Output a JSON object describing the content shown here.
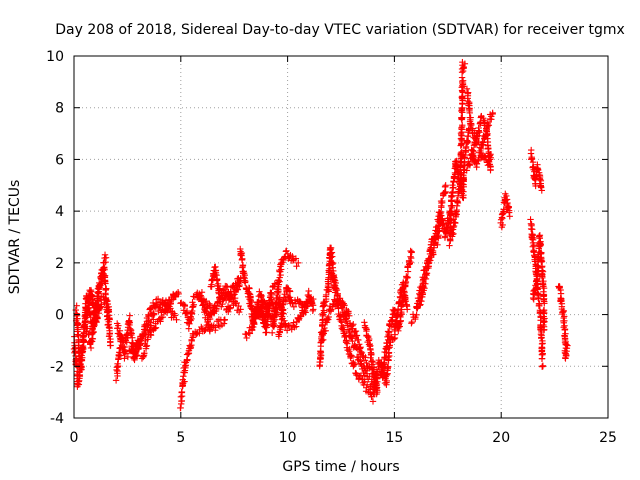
{
  "chart_data": {
    "type": "scatter",
    "title": "Day 208 of 2018, Sidereal Day-to-day VTEC variation (SDTVAR) for receiver tgmx",
    "xlabel": "GPS time / hours",
    "ylabel": "SDTVAR / TECUs",
    "xlim": [
      0,
      25
    ],
    "ylim": [
      -4,
      10
    ],
    "xticks": [
      0,
      5,
      10,
      15,
      20,
      25
    ],
    "yticks": [
      -4,
      -2,
      0,
      2,
      4,
      6,
      8,
      10
    ],
    "grid": true,
    "marker": "+",
    "color": "#ff0000",
    "series": [
      {
        "name": "SDTVAR",
        "tracks": [
          [
            [
              0.0,
              -1.0
            ],
            [
              0.2,
              -2.8
            ],
            [
              0.4,
              -1.6
            ],
            [
              0.6,
              0.8
            ],
            [
              0.9,
              -0.6
            ],
            [
              1.2,
              1.2
            ],
            [
              1.5,
              2.2
            ]
          ],
          [
            [
              0.1,
              0.2
            ],
            [
              0.3,
              -2.0
            ],
            [
              0.5,
              -0.4
            ],
            [
              0.8,
              1.0
            ],
            [
              1.0,
              -0.4
            ],
            [
              1.3,
              0.6
            ],
            [
              1.6,
              0.4
            ],
            [
              1.7,
              -1.2
            ]
          ],
          [
            [
              0.6,
              -0.6
            ],
            [
              0.8,
              -1.2
            ],
            [
              1.1,
              0.8
            ],
            [
              1.4,
              1.8
            ],
            [
              1.6,
              -0.4
            ]
          ],
          [
            [
              2.0,
              -2.4
            ],
            [
              2.2,
              -1.0
            ],
            [
              2.4,
              -1.2
            ],
            [
              2.6,
              -0.2
            ],
            [
              2.8,
              -1.6
            ],
            [
              3.0,
              -1.0
            ]
          ],
          [
            [
              2.0,
              -0.4
            ],
            [
              2.4,
              -1.6
            ],
            [
              3.0,
              -1.2
            ],
            [
              3.4,
              -0.6
            ],
            [
              3.8,
              0.2
            ],
            [
              4.2,
              0.4
            ],
            [
              4.6,
              0.6
            ],
            [
              4.9,
              0.8
            ]
          ],
          [
            [
              2.8,
              -1.8
            ],
            [
              3.2,
              -0.8
            ],
            [
              3.6,
              0.2
            ],
            [
              4.0,
              0.6
            ],
            [
              4.4,
              0.2
            ],
            [
              4.8,
              -0.2
            ]
          ],
          [
            [
              3.2,
              -1.6
            ],
            [
              3.6,
              -0.6
            ],
            [
              4.0,
              -0.2
            ],
            [
              4.4,
              0.4
            ],
            [
              4.8,
              0.8
            ]
          ],
          [
            [
              5.0,
              0.4
            ],
            [
              5.2,
              0.2
            ],
            [
              5.4,
              -0.4
            ],
            [
              5.6,
              0.6
            ],
            [
              5.9,
              0.8
            ],
            [
              6.2,
              0.4
            ],
            [
              6.5,
              0.0
            ],
            [
              6.8,
              0.6
            ],
            [
              7.1,
              0.8
            ],
            [
              7.4,
              0.6
            ],
            [
              7.8,
              0.2
            ]
          ],
          [
            [
              5.0,
              -3.5
            ],
            [
              5.2,
              -2.0
            ],
            [
              5.4,
              -1.4
            ],
            [
              5.6,
              -0.8
            ],
            [
              5.9,
              -0.6
            ],
            [
              6.2,
              -0.4
            ],
            [
              6.5,
              0.2
            ],
            [
              6.8,
              0.4
            ],
            [
              7.1,
              0.6
            ],
            [
              7.4,
              1.0
            ],
            [
              7.7,
              1.4
            ]
          ],
          [
            [
              5.8,
              0.8
            ],
            [
              6.1,
              0.2
            ],
            [
              6.4,
              -0.6
            ],
            [
              6.7,
              -0.4
            ],
            [
              7.0,
              -0.2
            ],
            [
              7.3,
              0.4
            ],
            [
              7.6,
              0.8
            ],
            [
              7.8,
              1.4
            ]
          ],
          [
            [
              6.4,
              1.0
            ],
            [
              6.6,
              1.8
            ],
            [
              6.8,
              0.8
            ],
            [
              7.1,
              1.0
            ],
            [
              7.4,
              0.6
            ]
          ],
          [
            [
              7.8,
              2.6
            ],
            [
              8.0,
              1.2
            ],
            [
              8.2,
              0.6
            ],
            [
              8.4,
              0.2
            ],
            [
              8.6,
              -0.2
            ],
            [
              8.8,
              0.4
            ],
            [
              9.0,
              -0.6
            ],
            [
              9.2,
              0.8
            ],
            [
              9.4,
              1.2
            ]
          ],
          [
            [
              8.2,
              1.0
            ],
            [
              8.4,
              -0.4
            ],
            [
              8.7,
              0.8
            ],
            [
              9.0,
              0.2
            ],
            [
              9.3,
              -0.2
            ],
            [
              9.6,
              0.6
            ],
            [
              9.9,
              -0.4
            ]
          ],
          [
            [
              8.0,
              -0.8
            ],
            [
              8.3,
              -0.6
            ],
            [
              8.6,
              0.4
            ],
            [
              8.9,
              -0.2
            ],
            [
              9.2,
              0.6
            ],
            [
              9.5,
              0.0
            ]
          ],
          [
            [
              9.3,
              -0.6
            ],
            [
              9.5,
              0.6
            ],
            [
              9.7,
              2.0
            ],
            [
              9.9,
              2.4
            ],
            [
              10.1,
              2.2
            ],
            [
              10.3,
              2.0
            ],
            [
              10.5,
              2.0
            ]
          ],
          [
            [
              9.6,
              -0.8
            ],
            [
              9.8,
              0.4
            ],
            [
              10.0,
              1.0
            ],
            [
              10.2,
              0.4
            ],
            [
              10.5,
              0.6
            ],
            [
              10.8,
              0.2
            ],
            [
              11.0,
              0.8
            ],
            [
              11.2,
              0.2
            ]
          ],
          [
            [
              10.0,
              -0.6
            ],
            [
              10.3,
              -0.4
            ],
            [
              10.6,
              0.0
            ],
            [
              10.9,
              0.4
            ],
            [
              11.2,
              0.6
            ]
          ],
          [
            [
              11.5,
              -2.0
            ],
            [
              11.7,
              0.4
            ],
            [
              11.9,
              1.0
            ],
            [
              12.0,
              2.6
            ],
            [
              12.2,
              1.2
            ],
            [
              12.5,
              0.4
            ],
            [
              12.8,
              -0.4
            ],
            [
              13.1,
              -1.2
            ],
            [
              13.4,
              -1.8
            ],
            [
              13.7,
              -2.4
            ],
            [
              14.0,
              -2.8
            ],
            [
              14.2,
              -2.2
            ]
          ],
          [
            [
              11.6,
              -1.0
            ],
            [
              11.9,
              0.0
            ],
            [
              12.2,
              0.6
            ],
            [
              12.5,
              -0.2
            ],
            [
              12.8,
              -1.2
            ],
            [
              13.1,
              -2.0
            ],
            [
              13.4,
              -2.4
            ],
            [
              13.7,
              -2.8
            ],
            [
              14.0,
              -3.2
            ],
            [
              14.2,
              -2.6
            ]
          ],
          [
            [
              12.0,
              1.6
            ],
            [
              12.3,
              0.8
            ],
            [
              12.6,
              0.4
            ],
            [
              12.9,
              -0.2
            ],
            [
              13.2,
              -0.8
            ],
            [
              13.5,
              -1.6
            ],
            [
              13.8,
              -2.0
            ],
            [
              14.1,
              -2.4
            ],
            [
              14.4,
              -2.2
            ]
          ],
          [
            [
              13.6,
              -0.4
            ],
            [
              13.8,
              -1.0
            ],
            [
              14.0,
              -2.0
            ],
            [
              14.2,
              -3.0
            ]
          ],
          [
            [
              14.4,
              -2.4
            ],
            [
              14.6,
              -1.4
            ],
            [
              14.8,
              -0.4
            ],
            [
              15.0,
              0.2
            ],
            [
              15.2,
              -0.6
            ],
            [
              15.4,
              0.6
            ],
            [
              15.6,
              1.6
            ],
            [
              15.8,
              2.4
            ]
          ],
          [
            [
              14.2,
              -2.0
            ],
            [
              14.4,
              -1.8
            ],
            [
              14.6,
              -2.6
            ],
            [
              14.8,
              -1.0
            ],
            [
              15.0,
              -0.8
            ],
            [
              15.2,
              0.4
            ],
            [
              15.4,
              1.2
            ],
            [
              15.6,
              0.2
            ]
          ],
          [
            [
              15.8,
              -0.2
            ],
            [
              16.0,
              0.0
            ],
            [
              16.2,
              0.8
            ],
            [
              16.4,
              1.6
            ],
            [
              16.6,
              2.0
            ],
            [
              16.8,
              2.4
            ],
            [
              17.0,
              3.4
            ],
            [
              17.2,
              4.2
            ],
            [
              17.4,
              5.0
            ]
          ],
          [
            [
              16.2,
              0.4
            ],
            [
              16.5,
              1.6
            ],
            [
              16.8,
              3.0
            ],
            [
              17.0,
              2.8
            ],
            [
              17.2,
              3.8
            ],
            [
              17.4,
              3.0
            ],
            [
              17.6,
              4.0
            ]
          ],
          [
            [
              17.6,
              2.8
            ],
            [
              17.7,
              4.6
            ],
            [
              17.9,
              6.0
            ],
            [
              18.0,
              5.4
            ],
            [
              18.2,
              4.6
            ],
            [
              18.3,
              6.0
            ],
            [
              18.5,
              7.2
            ]
          ],
          [
            [
              17.7,
              3.0
            ],
            [
              17.9,
              4.0
            ],
            [
              18.1,
              5.2
            ],
            [
              18.2,
              9.6
            ],
            [
              18.3,
              9.7
            ]
          ],
          [
            [
              18.4,
              8.6
            ],
            [
              18.5,
              8.0
            ],
            [
              18.6,
              7.2
            ],
            [
              18.8,
              6.8
            ],
            [
              19.0,
              6.4
            ],
            [
              19.2,
              6.0
            ],
            [
              19.4,
              5.8
            ],
            [
              19.5,
              6.2
            ]
          ],
          [
            [
              18.6,
              6.4
            ],
            [
              18.8,
              5.8
            ],
            [
              19.0,
              6.2
            ],
            [
              19.2,
              6.8
            ],
            [
              19.4,
              7.4
            ],
            [
              19.6,
              7.8
            ]
          ],
          [
            [
              18.4,
              5.6
            ],
            [
              18.6,
              6.0
            ],
            [
              18.9,
              7.0
            ],
            [
              19.1,
              7.6
            ],
            [
              19.3,
              7.2
            ],
            [
              19.5,
              5.6
            ]
          ],
          [
            [
              20.0,
              3.4
            ],
            [
              20.1,
              4.0
            ],
            [
              20.2,
              4.6
            ],
            [
              20.3,
              4.2
            ],
            [
              20.4,
              3.8
            ]
          ],
          [
            [
              21.4,
              6.2
            ],
            [
              21.5,
              5.6
            ],
            [
              21.6,
              5.0
            ],
            [
              21.7,
              5.8
            ],
            [
              21.8,
              5.4
            ],
            [
              21.9,
              4.8
            ]
          ],
          [
            [
              21.4,
              3.6
            ],
            [
              21.5,
              2.6
            ],
            [
              21.6,
              2.0
            ],
            [
              21.7,
              1.0
            ],
            [
              21.8,
              0.2
            ],
            [
              21.9,
              -1.0
            ],
            [
              21.95,
              -2.0
            ]
          ],
          [
            [
              21.5,
              0.6
            ],
            [
              21.7,
              1.6
            ],
            [
              21.8,
              3.0
            ],
            [
              21.9,
              2.0
            ],
            [
              22.0,
              0.8
            ],
            [
              22.0,
              -0.6
            ]
          ],
          [
            [
              22.7,
              1.2
            ],
            [
              22.8,
              0.6
            ],
            [
              22.9,
              0.0
            ],
            [
              23.0,
              -0.8
            ],
            [
              23.0,
              -1.6
            ],
            [
              23.1,
              -1.2
            ]
          ]
        ]
      }
    ]
  }
}
